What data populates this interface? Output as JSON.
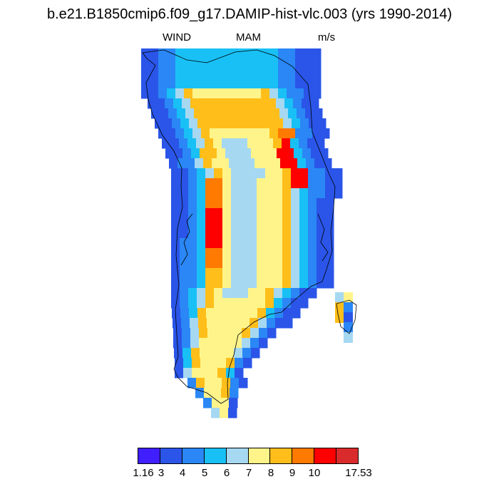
{
  "title": "b.e21.B1850cmip6.f09_g17.DAMIP-hist-vlc.003 (yrs 1990-2014)",
  "subtitle": {
    "left": "WIND",
    "center": "MAM",
    "right": "m/s"
  },
  "colorbar": {
    "colors": [
      "#3f1fff",
      "#2a55e8",
      "#2a87f5",
      "#19c0f5",
      "#a6d8f2",
      "#fff48a",
      "#ffbe1a",
      "#ff7a00",
      "#ff0000",
      "#d92b2b"
    ],
    "tick_labels": [
      "1.16",
      "3",
      "4",
      "5",
      "6",
      "7",
      "8",
      "9",
      "10",
      "17.53"
    ]
  }
}
